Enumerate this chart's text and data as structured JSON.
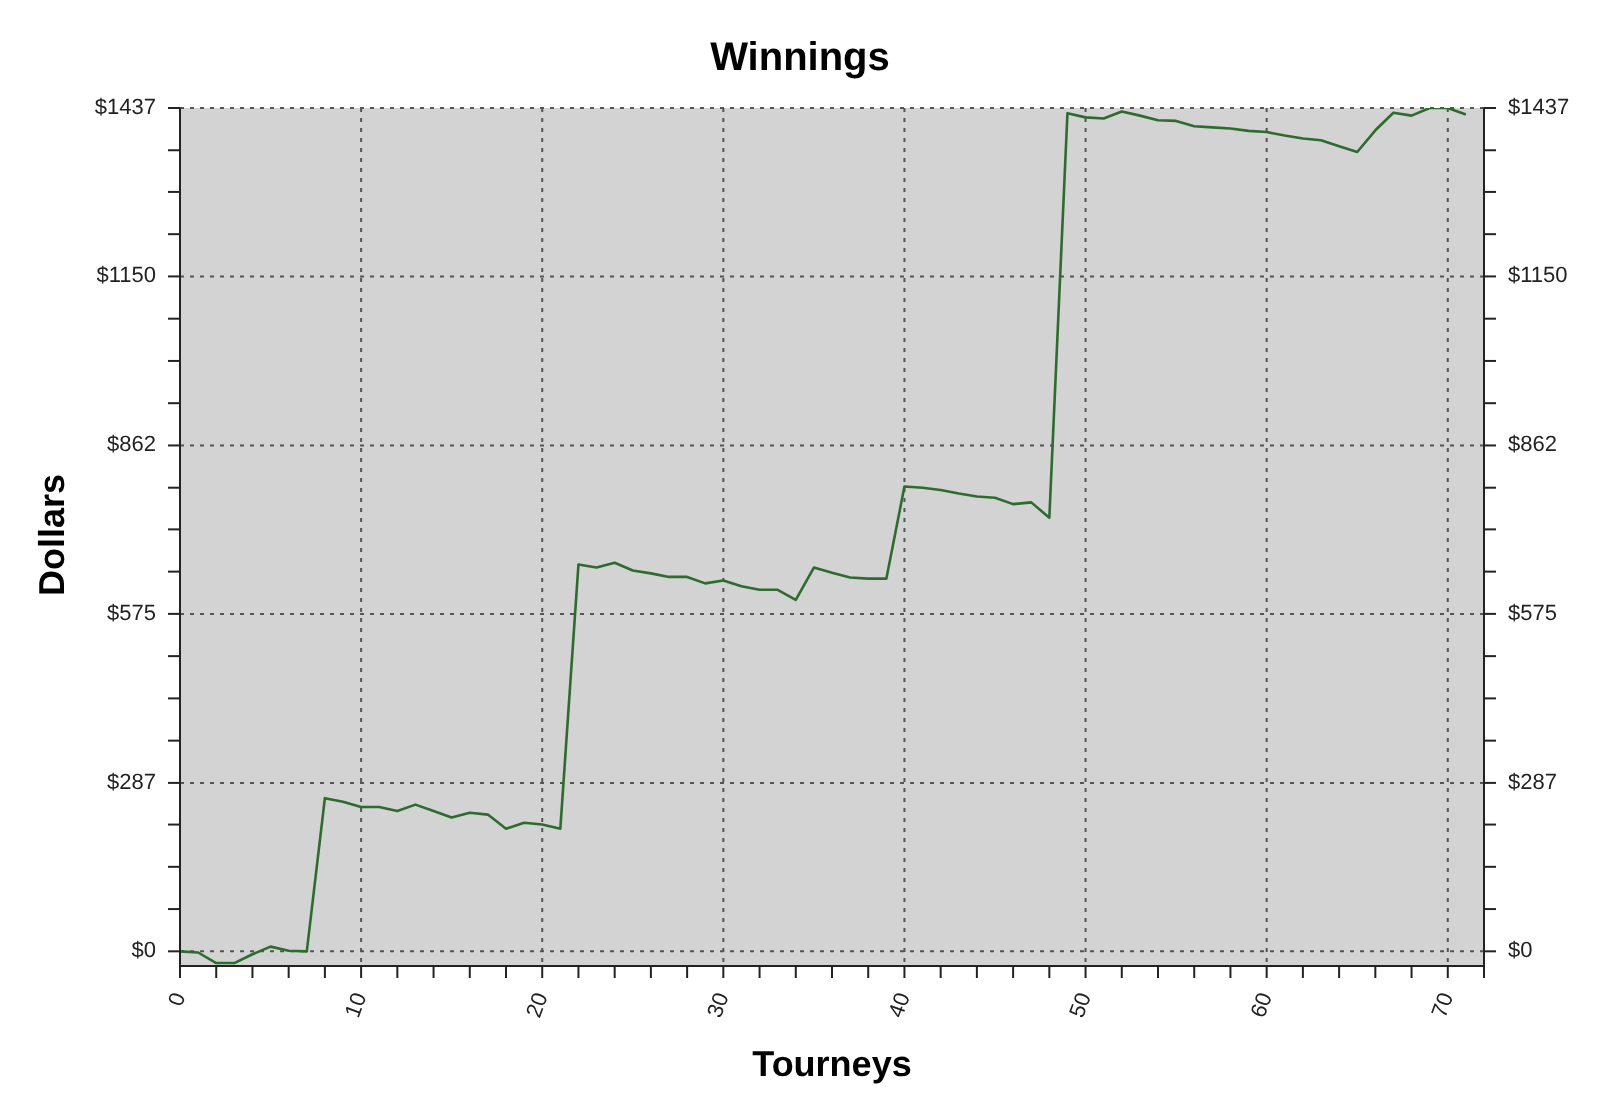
{
  "chart_data": {
    "type": "line",
    "title": "Winnings",
    "xlabel": "Tourneys",
    "ylabel": "Dollars",
    "x": [
      0,
      1,
      2,
      3,
      4,
      5,
      6,
      7,
      8,
      9,
      10,
      11,
      12,
      13,
      14,
      15,
      16,
      17,
      18,
      19,
      20,
      21,
      22,
      23,
      24,
      25,
      26,
      27,
      28,
      29,
      30,
      31,
      32,
      33,
      34,
      35,
      36,
      37,
      38,
      39,
      40,
      41,
      42,
      43,
      44,
      45,
      46,
      47,
      48,
      49,
      50,
      51,
      52,
      53,
      54,
      55,
      56,
      57,
      58,
      59,
      60,
      61,
      62,
      63,
      64,
      65,
      66,
      67,
      68,
      69,
      70,
      71
    ],
    "series": [
      {
        "color": "#2e6b2e",
        "values": [
          0,
          -2,
          -20,
          -20,
          -5,
          8,
          1,
          0,
          261,
          255,
          246,
          246,
          239,
          250,
          239,
          228,
          236,
          233,
          209,
          219,
          216,
          209,
          659,
          654,
          662,
          649,
          644,
          638,
          638,
          627,
          632,
          622,
          616,
          616,
          599,
          654,
          645,
          637,
          635,
          635,
          792,
          790,
          786,
          780,
          775,
          773,
          762,
          765,
          739,
          1428,
          1421,
          1419,
          1431,
          1424,
          1416,
          1415,
          1406,
          1404,
          1402,
          1398,
          1396,
          1390,
          1385,
          1382,
          1372,
          1362,
          1399,
          1429,
          1424,
          1437,
          1437,
          1426
        ]
      }
    ],
    "xlim": [
      0,
      72
    ],
    "xticks": [
      0,
      {
        "value": 2,
        "label": null
      },
      {
        "value": 4,
        "label": null
      },
      {
        "value": 6,
        "label": null
      },
      {
        "value": 8,
        "label": null
      },
      10,
      {
        "value": 12,
        "label": null
      },
      {
        "value": 14,
        "label": null
      },
      {
        "value": 16,
        "label": null
      },
      {
        "value": 18,
        "label": null
      },
      20,
      {
        "value": 22,
        "label": null
      },
      {
        "value": 24,
        "label": null
      },
      {
        "value": 26,
        "label": null
      },
      {
        "value": 28,
        "label": null
      },
      30,
      {
        "value": 32,
        "label": null
      },
      {
        "value": 34,
        "label": null
      },
      {
        "value": 36,
        "label": null
      },
      {
        "value": 38,
        "label": null
      },
      40,
      {
        "value": 42,
        "label": null
      },
      {
        "value": 44,
        "label": null
      },
      {
        "value": 46,
        "label": null
      },
      {
        "value": 48,
        "label": null
      },
      50,
      {
        "value": 52,
        "label": null
      },
      {
        "value": 54,
        "label": null
      },
      {
        "value": 56,
        "label": null
      },
      {
        "value": 58,
        "label": null
      },
      60,
      {
        "value": 62,
        "label": null
      },
      {
        "value": 64,
        "label": null
      },
      {
        "value": 66,
        "label": null
      },
      {
        "value": 68,
        "label": null
      },
      70,
      {
        "value": 72,
        "label": null
      }
    ],
    "ylim": [
      -25,
      1437
    ],
    "yticks": [
      {
        "value": 0,
        "label": "$0"
      },
      {
        "value": 72,
        "label": null
      },
      {
        "value": 144,
        "label": null
      },
      {
        "value": 216,
        "label": null
      },
      {
        "value": 287,
        "label": "$287"
      },
      {
        "value": 359,
        "label": null
      },
      {
        "value": 431,
        "label": null
      },
      {
        "value": 503,
        "label": null
      },
      {
        "value": 575,
        "label": "$575"
      },
      {
        "value": 647,
        "label": null
      },
      {
        "value": 719,
        "label": null
      },
      {
        "value": 790,
        "label": null
      },
      {
        "value": 862,
        "label": "$862"
      },
      {
        "value": 934,
        "label": null
      },
      {
        "value": 1006,
        "label": null
      },
      {
        "value": 1078,
        "label": null
      },
      {
        "value": 1150,
        "label": "$1150"
      },
      {
        "value": 1222,
        "label": null
      },
      {
        "value": 1294,
        "label": null
      },
      {
        "value": 1365,
        "label": null
      },
      {
        "value": 1437,
        "label": "$1437"
      }
    ],
    "y2lim": [
      -25,
      1437
    ],
    "y2ticks": [
      {
        "value": 0,
        "label": "$0"
      },
      {
        "value": 72,
        "label": null
      },
      {
        "value": 144,
        "label": null
      },
      {
        "value": 216,
        "label": null
      },
      {
        "value": 287,
        "label": "$287"
      },
      {
        "value": 359,
        "label": null
      },
      {
        "value": 431,
        "label": null
      },
      {
        "value": 503,
        "label": null
      },
      {
        "value": 575,
        "label": "$575"
      },
      {
        "value": 647,
        "label": null
      },
      {
        "value": 719,
        "label": null
      },
      {
        "value": 790,
        "label": null
      },
      {
        "value": 862,
        "label": "$862"
      },
      {
        "value": 934,
        "label": null
      },
      {
        "value": 1006,
        "label": null
      },
      {
        "value": 1078,
        "label": null
      },
      {
        "value": 1150,
        "label": "$1150"
      },
      {
        "value": 1222,
        "label": null
      },
      {
        "value": 1294,
        "label": null
      },
      {
        "value": 1365,
        "label": null
      },
      {
        "value": 1437,
        "label": "$1437"
      }
    ],
    "grid": true,
    "legend": false,
    "marker": "none",
    "line_style": "solid"
  }
}
